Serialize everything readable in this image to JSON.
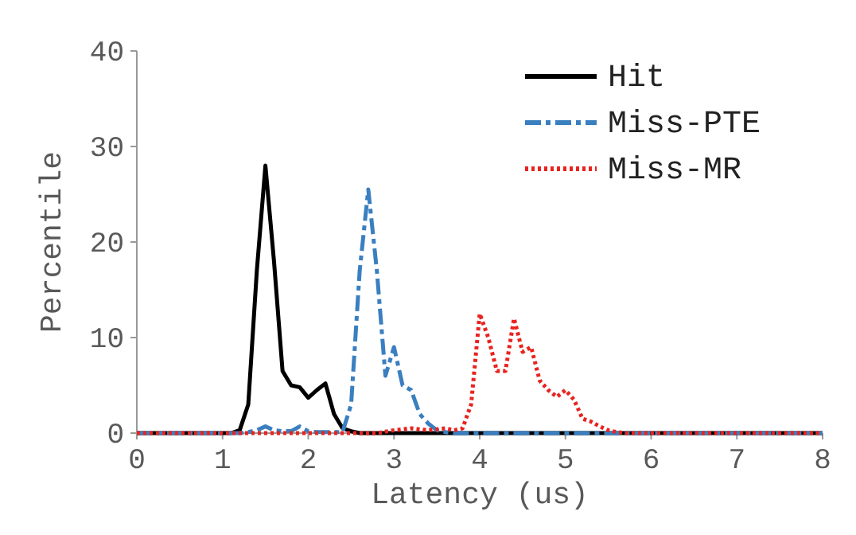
{
  "chart_data": {
    "type": "line",
    "xlabel": "Latency (us)",
    "ylabel": "Percentile",
    "xlim": [
      0,
      8
    ],
    "ylim": [
      0,
      40
    ],
    "xticks": [
      0,
      1,
      2,
      3,
      4,
      5,
      6,
      7,
      8
    ],
    "yticks": [
      0,
      10,
      20,
      30,
      40
    ],
    "grid": false,
    "legend": "top right",
    "marker": "none",
    "series": [
      {
        "name": "Hit",
        "color": "#000000",
        "line_style": "solid",
        "x": [
          0,
          1.1,
          1.2,
          1.3,
          1.4,
          1.5,
          1.6,
          1.7,
          1.8,
          1.9,
          2.0,
          2.1,
          2.2,
          2.3,
          2.4,
          2.5,
          2.6,
          8
        ],
        "values": [
          0,
          0,
          0.3,
          3,
          17,
          28,
          18,
          6.5,
          5,
          4.8,
          3.7,
          4.5,
          5.2,
          2,
          0.5,
          0.2,
          0,
          0
        ]
      },
      {
        "name": "Miss-PTE",
        "color": "#3a7fc0",
        "line_style": "dashed",
        "x": [
          0,
          1.2,
          1.3,
          1.4,
          1.5,
          1.6,
          1.7,
          1.8,
          1.9,
          2.0,
          2.1,
          2.4,
          2.5,
          2.6,
          2.7,
          2.8,
          2.9,
          3.0,
          3.1,
          3.2,
          3.3,
          3.4,
          3.5,
          3.6,
          3.7,
          8
        ],
        "values": [
          0,
          0,
          0.1,
          0.3,
          0.7,
          0.3,
          0.2,
          0.2,
          0.7,
          0.2,
          0.1,
          0.1,
          3,
          17,
          25.5,
          17,
          6,
          9,
          5,
          4.5,
          2,
          1,
          0.3,
          0.1,
          0,
          0
        ]
      },
      {
        "name": "Miss-MR",
        "color": "#e8231f",
        "line_style": "dotted",
        "x": [
          0,
          2.8,
          3.0,
          3.2,
          3.4,
          3.6,
          3.7,
          3.8,
          3.9,
          4.0,
          4.1,
          4.2,
          4.3,
          4.4,
          4.5,
          4.6,
          4.7,
          4.8,
          4.9,
          5.0,
          5.1,
          5.2,
          5.3,
          5.4,
          5.5,
          5.6,
          5.7,
          8
        ],
        "values": [
          0,
          0,
          0.3,
          0.5,
          0.3,
          0.5,
          0.3,
          0.5,
          3,
          12.5,
          10,
          6.5,
          6.5,
          12,
          8.5,
          9,
          5.5,
          4.5,
          3.8,
          4.5,
          3.5,
          1.5,
          1.2,
          0.7,
          0.3,
          0.1,
          0,
          0
        ]
      }
    ]
  }
}
